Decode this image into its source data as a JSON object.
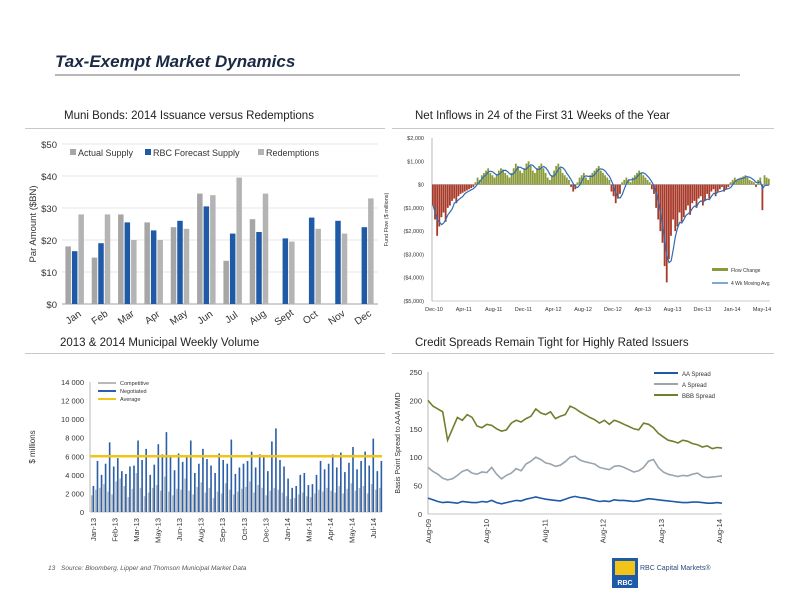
{
  "page": {
    "title": "Tax-Exempt Market Dynamics",
    "page_number": "13",
    "footnote": "Source: Bloomberg, Lipper and Thomson Municipal Market Data",
    "brand": "RBC Capital Markets®",
    "logo_text": "RBC"
  },
  "colors": {
    "actual": "#a6a6a6",
    "forecast": "#1f5aa6",
    "redemptions": "#b4b4b4",
    "flow_bar": "#8b9a3a",
    "flow_neg": "#a83a2a",
    "moving_avg": "#2f6db5",
    "competitive": "#b8b8b8",
    "negotiated": "#2b5fa8",
    "average": "#f0c419",
    "aa": "#1f5aa6",
    "a": "#9aa4ad",
    "bbb": "#6f7f2e"
  },
  "chart_data": [
    {
      "id": "issuance",
      "type": "bar",
      "title": "Muni Bonds: 2014 Issuance versus Redemptions",
      "ylabel": "Par Amount ($BN)",
      "ylim": [
        0,
        50
      ],
      "y_ticks": [
        "$0",
        "$10",
        "$20",
        "$30",
        "$40",
        "$50"
      ],
      "categories": [
        "Jan",
        "Feb",
        "Mar",
        "Apr",
        "May",
        "Jun",
        "Jul",
        "Aug",
        "Sept",
        "Oct",
        "Nov",
        "Dec"
      ],
      "series": [
        {
          "name": "Actual Supply",
          "values": [
            18,
            14.5,
            28,
            25.5,
            24,
            34.5,
            13.5,
            26.5,
            null,
            null,
            null,
            null
          ]
        },
        {
          "name": "RBC Forecast Supply",
          "values": [
            16.5,
            19,
            25.5,
            23,
            26,
            30.5,
            22,
            22.5,
            20.5,
            27,
            26,
            24
          ]
        },
        {
          "name": "Redemptions",
          "values": [
            28,
            28,
            20,
            20,
            23.5,
            34,
            39.5,
            34.5,
            19.5,
            23.5,
            22,
            33
          ]
        }
      ]
    },
    {
      "id": "inflows",
      "type": "bar",
      "title": "Net Inflows in 24 of the First 31 Weeks of the Year",
      "ylabel": "Fund Flow ($ millions)",
      "ylim": [
        -5000,
        2000
      ],
      "y_ticks": [
        "($5,000)",
        "($4,000)",
        "($3,000)",
        "($2,000)",
        "($1,000)",
        "$0",
        "$1,000",
        "$2,000"
      ],
      "x_ticks": [
        "Dec-10",
        "Apr-11",
        "Aug-11",
        "Dec-11",
        "Apr-12",
        "Aug-12",
        "Dec-12",
        "Apr-13",
        "Aug-13",
        "Dec-13",
        "Jan-14",
        "May-14"
      ],
      "series": [
        {
          "name": "Flow Change",
          "values": [
            -900,
            -1500,
            -2200,
            -1800,
            -1400,
            -1200,
            -1600,
            -1000,
            -900,
            -700,
            -600,
            -800,
            -500,
            -400,
            -350,
            -300,
            -250,
            -200,
            -150,
            -100,
            100,
            300,
            200,
            400,
            500,
            600,
            700,
            500,
            400,
            300,
            450,
            600,
            700,
            650,
            500,
            400,
            300,
            500,
            700,
            900,
            800,
            600,
            500,
            700,
            900,
            1000,
            800,
            600,
            500,
            700,
            800,
            900,
            700,
            500,
            300,
            200,
            400,
            600,
            800,
            900,
            700,
            500,
            400,
            300,
            200,
            -100,
            -300,
            -200,
            100,
            300,
            400,
            500,
            300,
            200,
            400,
            500,
            600,
            700,
            800,
            600,
            500,
            400,
            300,
            200,
            -300,
            -500,
            -800,
            -600,
            -400,
            100,
            200,
            300,
            200,
            100,
            300,
            400,
            500,
            600,
            500,
            400,
            300,
            200,
            100,
            -200,
            -400,
            -1000,
            -1500,
            -2000,
            -2500,
            -3500,
            -4200,
            -3200,
            -2200,
            -1500,
            -2000,
            -1800,
            -1200,
            -1600,
            -1400,
            -1100,
            -900,
            -1300,
            -800,
            -700,
            -1000,
            -600,
            -500,
            -900,
            -700,
            -400,
            -600,
            -300,
            -200,
            -500,
            -300,
            -200,
            -100,
            -300,
            -200,
            -100,
            100,
            200,
            300,
            200,
            250,
            300,
            350,
            400,
            300,
            200,
            150,
            100,
            -100,
            200,
            300,
            -1100,
            400,
            300,
            250
          ]
        },
        {
          "name": "4 Wk Moving Avg",
          "values": []
        }
      ]
    },
    {
      "id": "weekly_volume",
      "type": "bar",
      "title": "2013 & 2014 Municipal Weekly Volume",
      "ylabel": "$ millions",
      "ylim": [
        0,
        14000
      ],
      "y_ticks": [
        "0",
        "2 000",
        "4 000",
        "6 000",
        "8 000",
        "10 000",
        "12 000",
        "14 000"
      ],
      "x_ticks": [
        "Jan-13",
        "Feb-13",
        "Mar-13",
        "May-13",
        "Jun-13",
        "Aug-13",
        "Sep-13",
        "Oct-13",
        "Dec-13",
        "Jan-14",
        "Mar-14",
        "Apr-14",
        "May-14",
        "Jul-14"
      ],
      "average": 6000,
      "series": [
        {
          "name": "Competitive",
          "values": [
            1800,
            2400,
            2600,
            3000,
            2200,
            1900,
            3300,
            3600,
            2800,
            1600,
            2500,
            4200,
            2600,
            1700,
            2100,
            2600,
            2900,
            2300,
            3800,
            2200,
            1800,
            2500,
            2400,
            3600,
            2300,
            1900,
            2700,
            3200,
            2100,
            2600,
            1500,
            2200,
            2000,
            3100,
            2400,
            1900,
            2200,
            2500,
            2700,
            3300,
            2100,
            2900,
            2600,
            1800,
            2300,
            2600,
            2400,
            2100,
            1700,
            1400,
            1500,
            1900,
            2100,
            1700,
            1600,
            2000,
            2400,
            2200,
            2600,
            2300,
            2100,
            2800,
            2000,
            2500,
            3100,
            2300,
            2600,
            2800,
            2000,
            3000,
            2400,
            2600
          ]
        },
        {
          "name": "Negotiated",
          "values": [
            2800,
            5500,
            4000,
            5200,
            7500,
            4900,
            5800,
            4400,
            4100,
            4900,
            5000,
            7700,
            5600,
            6800,
            4000,
            5100,
            7300,
            6200,
            8600,
            5900,
            4500,
            6300,
            5400,
            6000,
            7700,
            4200,
            5200,
            6800,
            5700,
            5000,
            4200,
            6300,
            5600,
            5200,
            7800,
            4100,
            4800,
            5200,
            5500,
            6500,
            4800,
            6200,
            5900,
            4400,
            7600,
            9000,
            5600,
            4900,
            3600,
            2600,
            2800,
            4000,
            4200,
            2900,
            3000,
            4000,
            5500,
            4600,
            5200,
            6200,
            4800,
            6400,
            4300,
            5300,
            7000,
            4600,
            5500,
            6500,
            5000,
            7900,
            4400,
            5500
          ]
        },
        {
          "name": "Average",
          "values": [
            6000
          ]
        }
      ]
    },
    {
      "id": "credit_spreads",
      "type": "line",
      "title": "Credit Spreads Remain Tight for Highly Rated Issuers",
      "ylabel": "Basis Point Spread to AAA MMD",
      "ylim": [
        0,
        250
      ],
      "y_ticks": [
        "0",
        "50",
        "100",
        "150",
        "200",
        "250"
      ],
      "x_ticks": [
        "Aug-09",
        "Aug-10",
        "Aug-11",
        "Aug-12",
        "Aug-13",
        "Aug-14"
      ],
      "series": [
        {
          "name": "AA Spread",
          "values": [
            28,
            25,
            22,
            20,
            21,
            20,
            19,
            22,
            21,
            20,
            20,
            22,
            21,
            24,
            20,
            18,
            20,
            22,
            24,
            23,
            26,
            28,
            30,
            28,
            26,
            25,
            24,
            23,
            26,
            29,
            31,
            29,
            28,
            26,
            24,
            22,
            23,
            22,
            25,
            24,
            24,
            23,
            22,
            23,
            25,
            27,
            26,
            25,
            24,
            23,
            22,
            21,
            20,
            20,
            21,
            21,
            20,
            19,
            19,
            20,
            19
          ]
        },
        {
          "name": "A Spread",
          "values": [
            82,
            75,
            70,
            63,
            60,
            62,
            68,
            75,
            78,
            72,
            70,
            74,
            73,
            82,
            70,
            62,
            68,
            72,
            80,
            76,
            88,
            93,
            100,
            96,
            90,
            88,
            84,
            86,
            92,
            100,
            102,
            95,
            92,
            90,
            88,
            82,
            80,
            78,
            84,
            85,
            82,
            78,
            74,
            76,
            82,
            93,
            96,
            82,
            74,
            70,
            68,
            66,
            68,
            67,
            70,
            72,
            66,
            64,
            65,
            66,
            67
          ]
        },
        {
          "name": "BBB Spread",
          "values": [
            200,
            190,
            185,
            180,
            130,
            150,
            170,
            165,
            175,
            170,
            155,
            152,
            158,
            156,
            150,
            146,
            148,
            160,
            165,
            162,
            168,
            172,
            185,
            178,
            175,
            180,
            168,
            172,
            175,
            190,
            186,
            180,
            175,
            170,
            166,
            160,
            165,
            158,
            165,
            162,
            158,
            154,
            150,
            148,
            160,
            158,
            152,
            142,
            136,
            130,
            128,
            125,
            130,
            128,
            124,
            122,
            118,
            120,
            115,
            117,
            116
          ]
        }
      ]
    }
  ]
}
